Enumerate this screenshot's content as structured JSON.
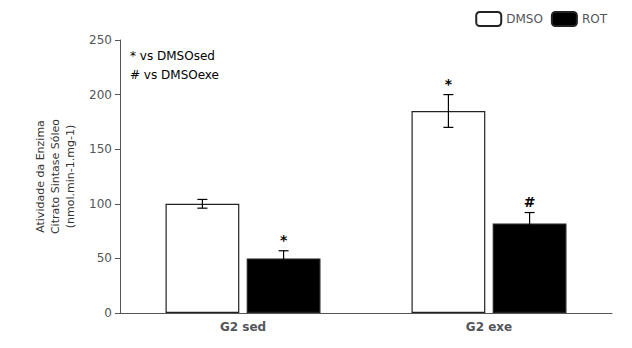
{
  "chart_data": {
    "type": "bar",
    "categories": [
      "G2 sed",
      "G2 exe"
    ],
    "series": [
      {
        "name": "DMSO",
        "color": "white",
        "values": [
          100,
          185
        ],
        "errors": [
          4,
          15
        ],
        "significance": [
          null,
          "*"
        ]
      },
      {
        "name": "ROT",
        "color": "black",
        "values": [
          50,
          82
        ],
        "errors": [
          7,
          10
        ],
        "significance": [
          "*",
          "#"
        ]
      }
    ],
    "y_label": "Atividade da Enzima\nCitrato Sintase Sóleo\n(nmol.min-1.mg-1)",
    "annotation": "* vs DMSOsed\n# vs DMSOexe",
    "ylim": [
      0,
      250
    ],
    "yticks": [
      0,
      50,
      100,
      150,
      200,
      250
    ],
    "grid": false,
    "legend": "upper right"
  }
}
